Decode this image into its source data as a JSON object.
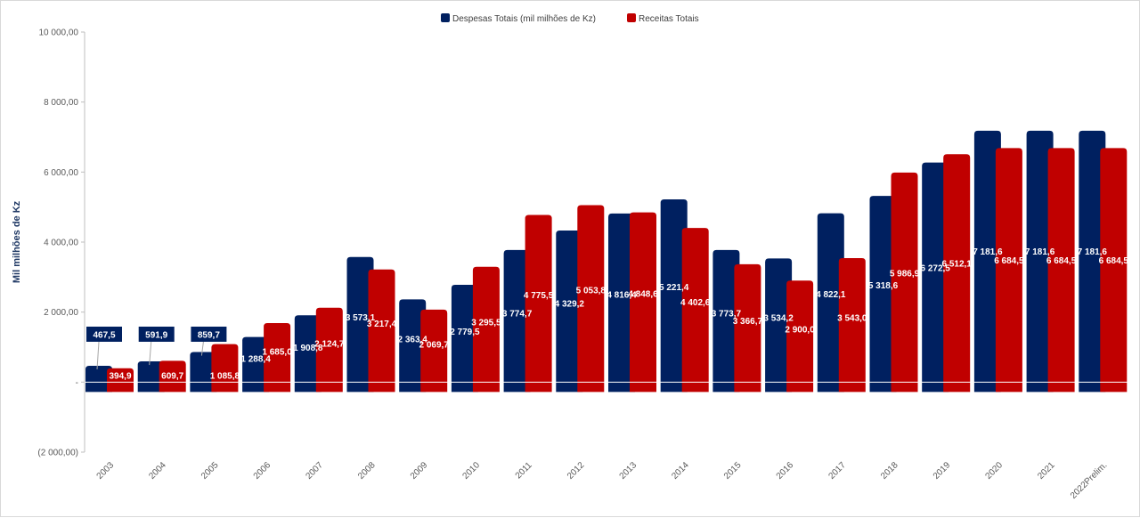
{
  "chart_data": {
    "type": "bar",
    "title": "",
    "xlabel": "",
    "ylabel": "Mil milhões de Kz",
    "ylim": [
      -2000,
      10000
    ],
    "yticks": [
      -2000,
      0,
      2000,
      4000,
      6000,
      8000,
      10000
    ],
    "ytick_labels": [
      "(2 000,00)",
      "-",
      "2 000,00",
      "4 000,00",
      "6 000,00",
      "8 000,00",
      "10 000,00"
    ],
    "grid": false,
    "legend_position": "top-center",
    "categories": [
      "2003",
      "2004",
      "2005",
      "2006",
      "2007",
      "2008",
      "2009",
      "2010",
      "2011",
      "2012",
      "2013",
      "2014",
      "2015",
      "2016",
      "2017",
      "2018",
      "2019",
      "2020",
      "2021",
      "2022Prelim."
    ],
    "series": [
      {
        "name": "Despesas Totais (mil milhões de Kz)",
        "color": "#002060",
        "values": [
          467.5,
          591.9,
          859.7,
          1288.4,
          1908.8,
          3573.1,
          2363.4,
          2779.5,
          3774.7,
          4329.2,
          4816.4,
          5221.4,
          3773.7,
          3534.2,
          4822.1,
          5318.6,
          6272.5,
          7181.6,
          7181.6,
          7181.6
        ],
        "labels": [
          "467,5",
          "591,9",
          "859,7",
          "1 288,4",
          "1 908,8",
          "3 573,1",
          "2 363,4",
          "2 779,5",
          "3 774,7",
          "4 329,2",
          "4 816,4",
          "5 221,4",
          "3 773,7",
          "3 534,2",
          "4 822,1",
          "5 318,6",
          "6 272,5",
          "7 181,6",
          "7 181,6",
          "7 181,6"
        ]
      },
      {
        "name": "Receitas Totais",
        "color": "#c00000",
        "values": [
          394.9,
          609.7,
          1085.8,
          1685.0,
          2124.7,
          3217.4,
          2069.7,
          3295.5,
          4775.5,
          5053.8,
          4848.6,
          4402.6,
          3366.7,
          2900.0,
          3543.0,
          5986.9,
          6512.1,
          6684.5,
          6684.5,
          6684.5
        ],
        "labels": [
          "394,9",
          "609,7",
          "1 085,8",
          "1 685,0",
          "2 124,7",
          "3 217,4",
          "2 069,7",
          "3 295,5",
          "4 775,5",
          "5 053,8",
          "4 848,6",
          "4 402,6",
          "3 366,7",
          "2 900,0",
          "3 543,0",
          "5 986,9",
          "6 512,1",
          "6 684,5",
          "6 684,5",
          "6 684,5"
        ]
      }
    ]
  }
}
